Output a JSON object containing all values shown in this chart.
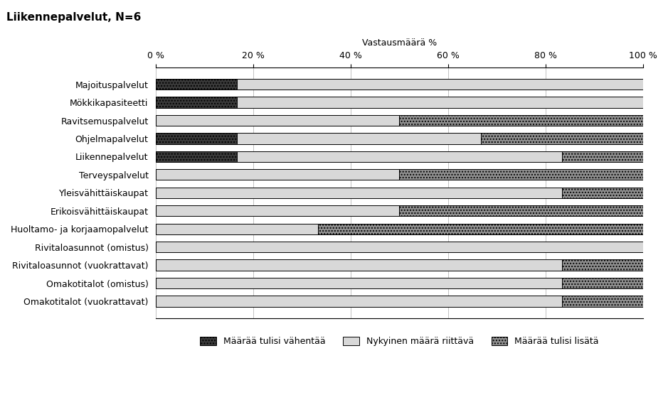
{
  "title": "Liikennepalvelut, N=6",
  "top_xlabel": "Vastausmäärä %",
  "categories": [
    "Majoituspalvelut",
    "Mökkikapasiteetti",
    "Ravitsemuspalvelut",
    "Ohjelmapalvelut",
    "Liikennepalvelut",
    "Terveyspalvelut",
    "Yleisvähittäiskaupat",
    "Erikoisvähittäiskaupat",
    "Huoltamo- ja korjaamopalvelut",
    "Rivitaloasunnot (omistus)",
    "Rivitaloasunnot (vuokrattavat)",
    "Omakotitalot (omistus)",
    "Omakotitalot (vuokrattavat)"
  ],
  "series": {
    "vahentaa": [
      16.67,
      16.67,
      0,
      16.67,
      16.67,
      0,
      0,
      0,
      0,
      0,
      0,
      0,
      0
    ],
    "riittava": [
      83.33,
      83.33,
      50.0,
      50.0,
      66.67,
      50.0,
      83.33,
      50.0,
      33.33,
      100.0,
      83.33,
      83.33,
      83.33
    ],
    "lisata": [
      0,
      0,
      50.0,
      33.33,
      16.67,
      50.0,
      16.67,
      50.0,
      66.67,
      0,
      16.67,
      16.67,
      16.67
    ]
  },
  "legend_labels": [
    "Määrää tulisi vähentää",
    "Nykyinen määrä riittävä",
    "Määrää tulisi lisätä"
  ],
  "color_vahentaa": "#3a3a3a",
  "color_riittava": "#d8d8d8",
  "color_lisata": "#909090",
  "hatch_vahentaa": "....",
  "hatch_riittava": "",
  "hatch_lisata": "....",
  "xlim": [
    0,
    100
  ],
  "xticks": [
    0,
    20,
    40,
    60,
    80,
    100
  ],
  "xticklabels": [
    "0 %",
    "20 %",
    "40 %",
    "60 %",
    "80 %",
    "100 %"
  ],
  "figsize": [
    9.39,
    5.56
  ],
  "dpi": 100,
  "bar_height": 0.6
}
